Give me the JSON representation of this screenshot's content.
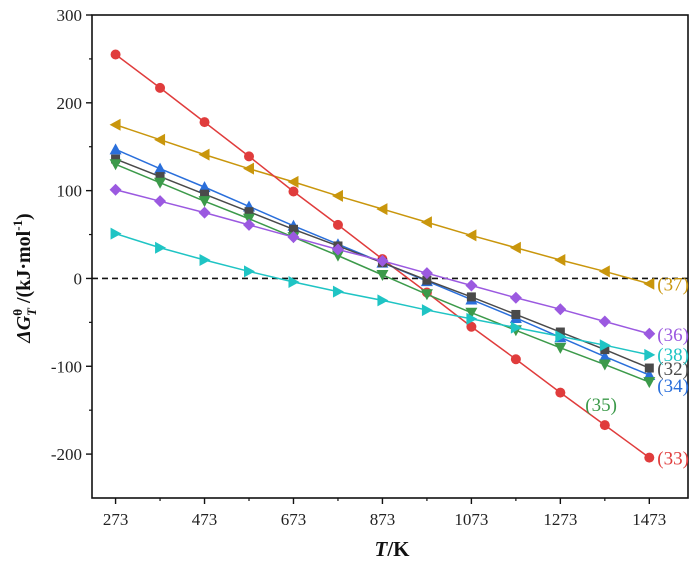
{
  "chart_data": {
    "type": "line",
    "xlabel_italic": "T",
    "xlabel_rest": "/K",
    "ylabel_prefix": "ΔG",
    "ylabel_sup": "θ",
    "ylabel_sub": "T",
    "ylabel_unit_a": " /(kJ·mol",
    "ylabel_unit_sup": "-1",
    "ylabel_unit_b": ")",
    "xlim": [
      220,
      1560
    ],
    "ylim": [
      -250,
      300
    ],
    "xticks": [
      273,
      473,
      673,
      873,
      1073,
      1273,
      1473
    ],
    "xtick_labels": [
      "273",
      "473",
      "673",
      "873",
      "1073",
      "1273",
      "1473"
    ],
    "yticks": [
      -200,
      -100,
      0,
      100,
      200,
      300
    ],
    "ytick_labels": [
      "-200",
      "-100",
      "0",
      "100",
      "200",
      "300"
    ],
    "zero_line": {
      "y": 0,
      "style": "dashed"
    },
    "x": [
      273,
      373,
      473,
      573,
      673,
      773,
      873,
      973,
      1073,
      1173,
      1273,
      1373,
      1473
    ],
    "series": [
      {
        "name": "(37)",
        "label": "(37)",
        "color": "#c9960c",
        "marker": "triangle-left",
        "values": [
          175,
          158,
          141,
          125,
          110,
          94,
          79,
          64,
          49,
          35,
          21,
          8,
          -6
        ]
      },
      {
        "name": "(33)",
        "label": "(33)",
        "color": "#e03c3c",
        "marker": "circle",
        "values": [
          255,
          217,
          178,
          139,
          99,
          61,
          22,
          -16,
          -55,
          -92,
          -130,
          -167,
          -204
        ]
      },
      {
        "name": "(34)",
        "label": "(34)",
        "color": "#2a6fdb",
        "marker": "triangle-up",
        "values": [
          147,
          125,
          104,
          82,
          60,
          39,
          18,
          -3,
          -24,
          -45,
          -67,
          -89,
          -110
        ]
      },
      {
        "name": "(32)",
        "label": "(32)",
        "color": "#4a4a4a",
        "marker": "square",
        "values": [
          136,
          116,
          96,
          76,
          56,
          37,
          18,
          -2,
          -21,
          -41,
          -61,
          -81,
          -102
        ]
      },
      {
        "name": "(35)",
        "label": "(35)",
        "color": "#3c9a4a",
        "marker": "triangle-down",
        "values": [
          130,
          109,
          88,
          68,
          47,
          26,
          4,
          -18,
          -39,
          -59,
          -79,
          -98,
          -118
        ]
      },
      {
        "name": "(36)",
        "label": "(36)",
        "color": "#9b59e0",
        "marker": "diamond",
        "values": [
          101,
          88,
          75,
          61,
          47,
          33,
          20,
          6,
          -8,
          -22,
          -35,
          -49,
          -63
        ]
      },
      {
        "name": "(38)",
        "label": "(38)",
        "color": "#1fc4c4",
        "marker": "triangle-right",
        "values": [
          51,
          35,
          21,
          8,
          -4,
          -15,
          -25,
          -36,
          -46,
          -56,
          -66,
          -76,
          -87
        ]
      }
    ]
  }
}
